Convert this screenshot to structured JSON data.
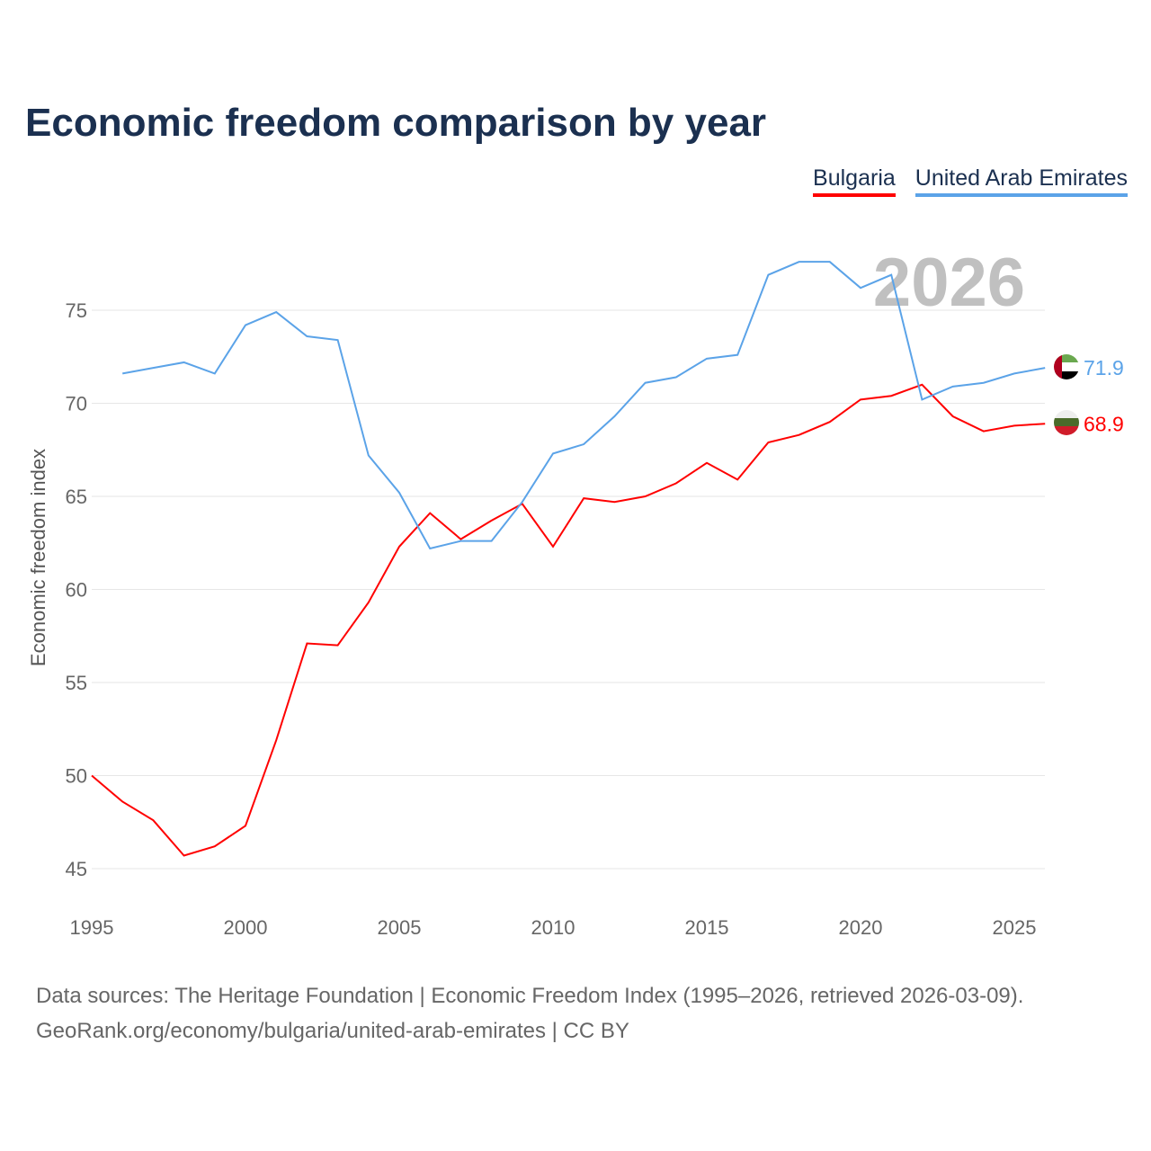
{
  "chart_data": {
    "type": "line",
    "title": "Economic freedom comparison by year",
    "xlabel": "",
    "ylabel": "Economic freedom index",
    "xlim": [
      1995,
      2026
    ],
    "ylim": [
      43.5,
      78.5
    ],
    "yticks": [
      45,
      50,
      55,
      60,
      65,
      70,
      75
    ],
    "xticks": [
      1995,
      2000,
      2005,
      2010,
      2015,
      2020,
      2025
    ],
    "grid": true,
    "legend_placement": "top-right",
    "year_annotation": "2026",
    "series": [
      {
        "name": "Bulgaria",
        "color": "#ff0000",
        "end_label": "68.9",
        "x": [
          1995,
          1996,
          1997,
          1998,
          1999,
          2000,
          2001,
          2002,
          2003,
          2004,
          2005,
          2006,
          2007,
          2008,
          2009,
          2010,
          2011,
          2012,
          2013,
          2014,
          2015,
          2016,
          2017,
          2018,
          2019,
          2020,
          2021,
          2022,
          2023,
          2024,
          2025,
          2026
        ],
        "values": [
          50.0,
          48.6,
          47.6,
          45.7,
          46.2,
          47.3,
          51.9,
          57.1,
          57.0,
          59.3,
          62.3,
          64.1,
          62.7,
          63.7,
          64.6,
          62.3,
          64.9,
          64.7,
          65.0,
          65.7,
          66.8,
          65.9,
          67.9,
          68.3,
          69.0,
          70.2,
          70.4,
          71.0,
          69.3,
          68.5,
          68.8,
          68.9
        ]
      },
      {
        "name": "United Arab Emirates",
        "color": "#5ba3e8",
        "end_label": "71.9",
        "x": [
          1996,
          1997,
          1998,
          1999,
          2000,
          2001,
          2002,
          2003,
          2004,
          2005,
          2006,
          2007,
          2008,
          2009,
          2010,
          2011,
          2012,
          2013,
          2014,
          2015,
          2016,
          2017,
          2018,
          2019,
          2020,
          2021,
          2022,
          2023,
          2024,
          2025,
          2026
        ],
        "values": [
          71.6,
          71.9,
          72.2,
          71.6,
          74.2,
          74.9,
          73.6,
          73.4,
          67.2,
          65.2,
          62.2,
          62.6,
          62.6,
          64.7,
          67.3,
          67.8,
          69.3,
          71.1,
          71.4,
          72.4,
          72.6,
          76.9,
          77.6,
          77.6,
          76.2,
          76.9,
          70.2,
          70.9,
          71.1,
          71.6,
          71.9
        ]
      }
    ]
  },
  "footer": {
    "line1": "Data sources: The Heritage Foundation | Economic Freedom Index (1995–2026, retrieved 2026-03-09).",
    "line2": "GeoRank.org/economy/bulgaria/united-arab-emirates | CC BY"
  }
}
